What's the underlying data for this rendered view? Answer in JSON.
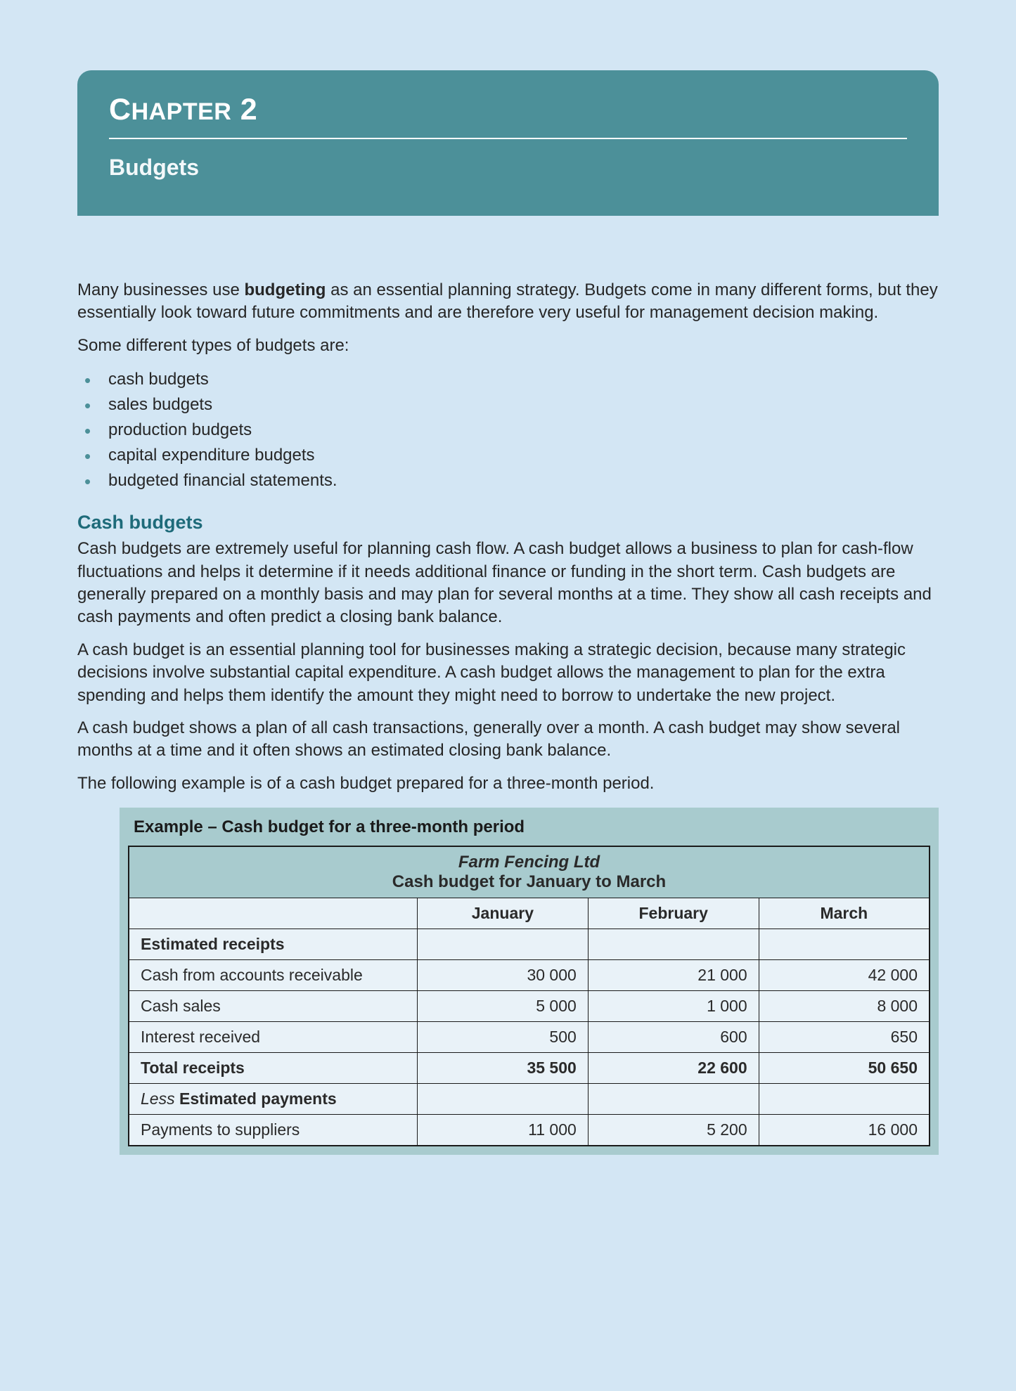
{
  "page_bg": "#d3e6f4",
  "chapter": {
    "header_bg": "#4c9099",
    "number_label": "Chapter 2",
    "title": "Budgets",
    "text_color": "#ffffff",
    "title_fontsize": 32,
    "number_fontsize": 43
  },
  "intro": {
    "p1_before": "Many businesses use ",
    "p1_bold": "budgeting",
    "p1_after": " as an essential planning strategy. Budgets come in many different forms, but they essentially look toward future commitments and are therefore very useful for management decision making.",
    "p2": "Some different types of budgets are:"
  },
  "bullets": [
    "cash budgets",
    "sales budgets",
    "production budgets",
    "capital expenditure budgets",
    "budgeted financial statements."
  ],
  "section": {
    "heading": "Cash budgets",
    "heading_color": "#1e6b7a",
    "p1": "Cash budgets are extremely useful for planning cash flow. A cash budget allows a business to plan for cash-flow fluctuations and helps it determine if it needs additional finance or funding in the short term. Cash budgets are generally prepared on a monthly basis and may plan for several months at a time. They show all cash receipts and cash payments and often predict a closing bank balance.",
    "p2": "A cash budget is an essential planning tool for businesses making a strategic decision, because many strategic decisions involve substantial capital expenditure. A cash budget allows the management to plan for the extra spending and helps them identify the amount they might need to borrow to undertake the new project.",
    "p3": "A cash budget shows a plan of all cash transactions, generally over a month. A cash budget may show several months at a time and it often shows an estimated closing bank balance.",
    "p4": "The following example is of a cash budget prepared for a three-month period."
  },
  "example": {
    "title": "Example – Cash budget for a three-month period",
    "panel_bg": "#a8cbce",
    "cell_bg": "#e9f2f8",
    "border_color": "#1a1a1a",
    "company": "Farm Fencing Ltd",
    "period": "Cash budget for January to March",
    "columns": [
      "January",
      "February",
      "March"
    ],
    "receipts_header": "Estimated receipts",
    "rows": [
      {
        "label": "Cash from accounts receivable",
        "jan": "30 000",
        "feb": "21 000",
        "mar": "42 000"
      },
      {
        "label": "Cash sales",
        "jan": "5 000",
        "feb": "1 000",
        "mar": "8 000"
      },
      {
        "label": "Interest received",
        "jan": "500",
        "feb": "600",
        "mar": "650"
      }
    ],
    "total": {
      "label": "Total receipts",
      "jan": "35 500",
      "feb": "22 600",
      "mar": "50 650"
    },
    "less_label_italic": "Less",
    "less_label_rest": " Estimated payments",
    "payments": [
      {
        "label": "Payments to suppliers",
        "jan": "11 000",
        "feb": "5 200",
        "mar": "16 000"
      }
    ]
  }
}
